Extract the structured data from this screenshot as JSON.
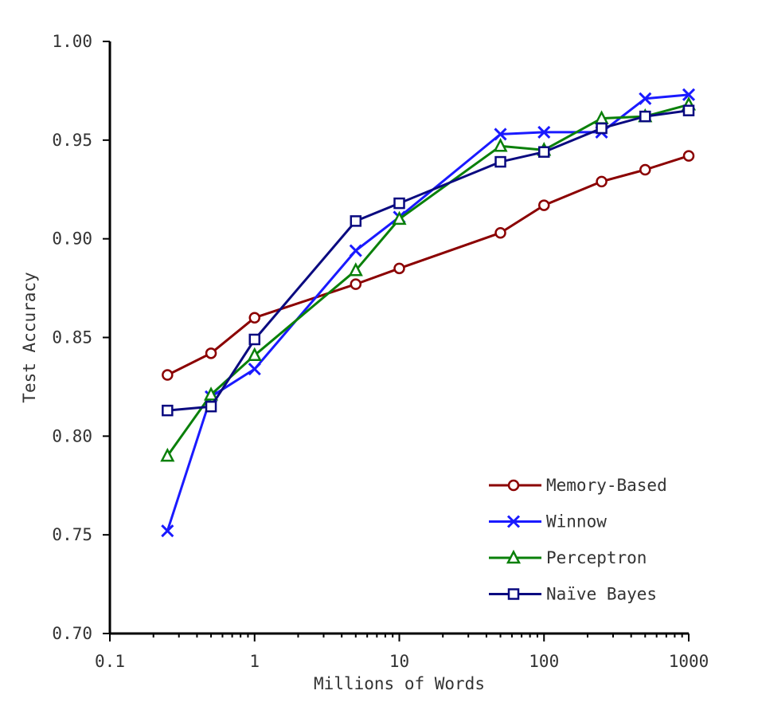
{
  "chart_data": {
    "type": "line",
    "title": "",
    "xlabel": "Millions of Words",
    "ylabel": "Test Accuracy",
    "xscale": "log",
    "xlim": [
      0.1,
      1000
    ],
    "ylim": [
      0.7,
      1.0
    ],
    "x_ticks": [
      0.1,
      1,
      10,
      100,
      1000
    ],
    "x_tick_labels": [
      "0.1",
      "1",
      "10",
      "100",
      "1000"
    ],
    "y_ticks": [
      0.7,
      0.75,
      0.8,
      0.85,
      0.9,
      0.95,
      1.0
    ],
    "y_tick_labels": [
      "0.70",
      "0.75",
      "0.80",
      "0.85",
      "0.90",
      "0.95",
      "1.00"
    ],
    "grid": false,
    "legend_position": "bottom-right",
    "x": [
      0.25,
      0.5,
      1,
      5,
      10,
      50,
      100,
      250,
      500,
      1000
    ],
    "series": [
      {
        "name": "Memory-Based",
        "color": "#8B0000",
        "marker": "circle",
        "values": [
          0.831,
          0.842,
          0.86,
          0.877,
          0.885,
          0.903,
          0.917,
          0.929,
          0.935,
          0.942
        ]
      },
      {
        "name": "Winnow",
        "color": "#1A1AFF",
        "marker": "x",
        "values": [
          0.752,
          0.82,
          0.834,
          0.894,
          0.911,
          0.953,
          0.954,
          0.954,
          0.971,
          0.973
        ]
      },
      {
        "name": "Perceptron",
        "color": "#0A800A",
        "marker": "triangle",
        "values": [
          0.79,
          0.821,
          0.841,
          0.884,
          0.91,
          0.947,
          0.945,
          0.961,
          0.962,
          0.968
        ]
      },
      {
        "name": "Naïve Bayes",
        "color": "#0A0A80",
        "marker": "square",
        "values": [
          0.813,
          0.815,
          0.849,
          0.909,
          0.918,
          0.939,
          0.944,
          0.956,
          0.962,
          0.965
        ]
      }
    ]
  }
}
